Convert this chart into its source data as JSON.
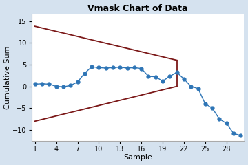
{
  "title": "Vmask Chart of Data",
  "xlabel": "Sample",
  "ylabel": "Cumulative Sum",
  "background_color": "#d5e2ef",
  "plot_bg_color": "#ffffff",
  "xlim": [
    0.5,
    30.5
  ],
  "ylim": [
    -12.5,
    16.5
  ],
  "yticks": [
    -10,
    -5,
    0,
    5,
    10,
    15
  ],
  "xticks": [
    1,
    4,
    7,
    10,
    13,
    16,
    19,
    22,
    25,
    28
  ],
  "cusum_x": [
    1,
    2,
    3,
    4,
    5,
    6,
    7,
    8,
    9,
    10,
    11,
    12,
    13,
    14,
    15,
    16,
    17,
    18,
    19,
    20,
    21,
    22,
    23,
    24,
    25,
    26,
    27,
    28,
    29,
    30
  ],
  "cusum_y": [
    0.5,
    0.6,
    0.5,
    0.0,
    -0.1,
    0.2,
    1.0,
    3.0,
    4.5,
    4.3,
    4.2,
    4.3,
    4.4,
    4.2,
    4.3,
    4.1,
    2.3,
    2.2,
    1.2,
    2.3,
    3.2,
    1.7,
    0.0,
    -0.5,
    -4.0,
    -5.0,
    -7.5,
    -8.5,
    -10.8,
    -11.3
  ],
  "line_color": "#2e75b6",
  "marker_size": 3.5,
  "vmask_color": "#7B1818",
  "vmask_upper_x1": 1,
  "vmask_upper_y1": 13.8,
  "vmask_upper_x2": 21,
  "vmask_upper_y2": 6.0,
  "vmask_lower_x1": 1,
  "vmask_lower_y1": -8.0,
  "vmask_lower_x2": 21,
  "vmask_lower_y2": 0.0,
  "vmask_vert_x": 21,
  "vmask_vert_y1": 0.0,
  "vmask_vert_y2": 6.0,
  "title_fontsize": 9,
  "label_fontsize": 8,
  "tick_fontsize": 7
}
